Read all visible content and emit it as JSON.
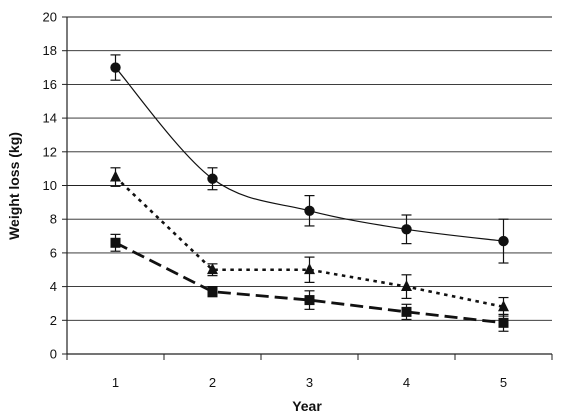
{
  "chart_data": {
    "type": "line",
    "title": "",
    "xlabel": "Year",
    "ylabel": "Weight loss (kg)",
    "x": [
      1,
      2,
      3,
      4,
      5
    ],
    "ylim": [
      0,
      20
    ],
    "yticks": [
      0,
      2,
      4,
      6,
      8,
      10,
      12,
      14,
      16,
      18,
      20
    ],
    "grid": "horizontal",
    "legend": "none",
    "series": [
      {
        "marker": "circle",
        "line_style": "solid",
        "color": "#111111",
        "values": [
          17.0,
          10.4,
          8.5,
          7.4,
          6.7
        ],
        "error": [
          0.75,
          0.65,
          0.9,
          0.85,
          1.3
        ]
      },
      {
        "marker": "triangle",
        "line_style": "dotted",
        "color": "#111111",
        "values": [
          10.5,
          5.0,
          5.0,
          4.0,
          2.8
        ],
        "error": [
          0.55,
          0.35,
          0.75,
          0.7,
          0.55
        ]
      },
      {
        "marker": "square",
        "line_style": "dashed",
        "color": "#111111",
        "values": [
          6.6,
          3.7,
          3.2,
          2.5,
          1.85
        ],
        "error": [
          0.5,
          0.3,
          0.55,
          0.45,
          0.5
        ]
      }
    ]
  }
}
